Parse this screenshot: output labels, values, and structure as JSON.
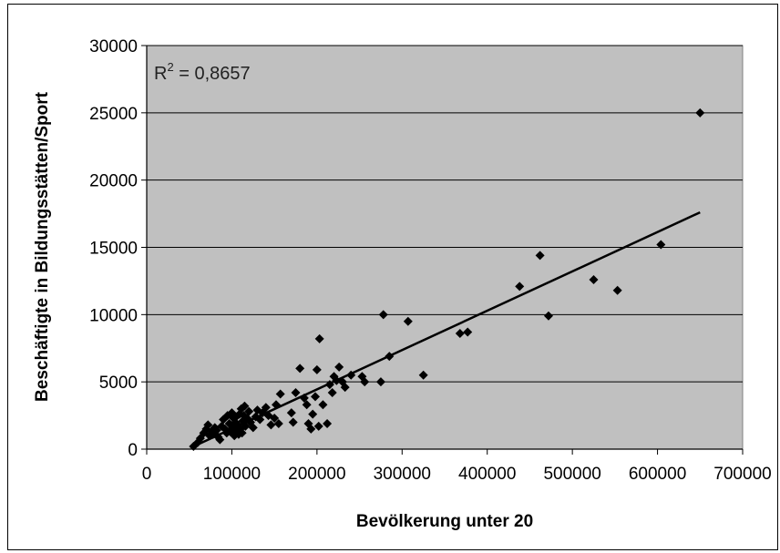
{
  "chart_data": {
    "type": "scatter",
    "title": "",
    "xlabel": "Bevölkerung unter 20",
    "ylabel": "Beschäftigte in Bildungsstätten/Sport",
    "xlim": [
      0,
      700000
    ],
    "ylim": [
      0,
      30000
    ],
    "x_ticks": [
      0,
      100000,
      200000,
      300000,
      400000,
      500000,
      600000,
      700000
    ],
    "y_ticks": [
      0,
      5000,
      10000,
      15000,
      20000,
      25000,
      30000
    ],
    "grid": "horizontal",
    "legend": "none",
    "annotation": {
      "r2_prefix": "R",
      "r2_sup": "2",
      "r2_value": " = 0,8657"
    },
    "trendline": {
      "x": [
        55000,
        650000
      ],
      "y": [
        200,
        17600
      ]
    },
    "colors": {
      "plot_bg": "#c0c0c0",
      "marker": "#000000",
      "trendline": "#000000",
      "gridline": "#000000"
    },
    "series": [
      {
        "points": [
          [
            55000,
            200
          ],
          [
            60000,
            500
          ],
          [
            63000,
            800
          ],
          [
            67000,
            1200
          ],
          [
            70000,
            1500
          ],
          [
            72000,
            1800
          ],
          [
            74000,
            1000
          ],
          [
            76000,
            1300
          ],
          [
            78000,
            1100
          ],
          [
            80000,
            1600
          ],
          [
            82000,
            1400
          ],
          [
            84000,
            900
          ],
          [
            86000,
            700
          ],
          [
            88000,
            1700
          ],
          [
            90000,
            2200
          ],
          [
            92000,
            1500
          ],
          [
            94000,
            1200
          ],
          [
            95000,
            2500
          ],
          [
            97000,
            1900
          ],
          [
            98000,
            1300
          ],
          [
            100000,
            2700
          ],
          [
            101000,
            1600
          ],
          [
            102000,
            2300
          ],
          [
            103000,
            1000
          ],
          [
            104000,
            2000
          ],
          [
            105000,
            2400
          ],
          [
            106000,
            1400
          ],
          [
            107000,
            1800
          ],
          [
            108000,
            1100
          ],
          [
            109000,
            2600
          ],
          [
            110000,
            1500
          ],
          [
            111000,
            3000
          ],
          [
            112000,
            1200
          ],
          [
            113000,
            2100
          ],
          [
            114000,
            2500
          ],
          [
            115000,
            3200
          ],
          [
            116000,
            1700
          ],
          [
            118000,
            2300
          ],
          [
            120000,
            2800
          ],
          [
            122000,
            2000
          ],
          [
            125000,
            1600
          ],
          [
            128000,
            2400
          ],
          [
            130000,
            2900
          ],
          [
            133000,
            2200
          ],
          [
            136000,
            2700
          ],
          [
            140000,
            3100
          ],
          [
            143000,
            2500
          ],
          [
            146000,
            1800
          ],
          [
            150000,
            2300
          ],
          [
            152000,
            3300
          ],
          [
            155000,
            1900
          ],
          [
            157000,
            4100
          ],
          [
            170000,
            2700
          ],
          [
            172000,
            2000
          ],
          [
            175000,
            4200
          ],
          [
            180000,
            6000
          ],
          [
            185000,
            3800
          ],
          [
            188000,
            3300
          ],
          [
            190000,
            1900
          ],
          [
            193000,
            1500
          ],
          [
            195000,
            2600
          ],
          [
            198000,
            3900
          ],
          [
            200000,
            5900
          ],
          [
            202000,
            1700
          ],
          [
            203000,
            8200
          ],
          [
            207000,
            3300
          ],
          [
            212000,
            1900
          ],
          [
            215000,
            4800
          ],
          [
            218000,
            4200
          ],
          [
            220000,
            5400
          ],
          [
            223000,
            5100
          ],
          [
            226000,
            6100
          ],
          [
            230000,
            5000
          ],
          [
            233000,
            4600
          ],
          [
            240000,
            5500
          ],
          [
            253000,
            5400
          ],
          [
            256000,
            5000
          ],
          [
            275000,
            5000
          ],
          [
            278000,
            10000
          ],
          [
            285000,
            6900
          ],
          [
            307000,
            9500
          ],
          [
            325000,
            5500
          ],
          [
            368000,
            8600
          ],
          [
            377000,
            8700
          ],
          [
            438000,
            12100
          ],
          [
            462000,
            14400
          ],
          [
            472000,
            9900
          ],
          [
            525000,
            12600
          ],
          [
            553000,
            11800
          ],
          [
            604000,
            15200
          ],
          [
            650000,
            25000
          ]
        ]
      }
    ]
  }
}
